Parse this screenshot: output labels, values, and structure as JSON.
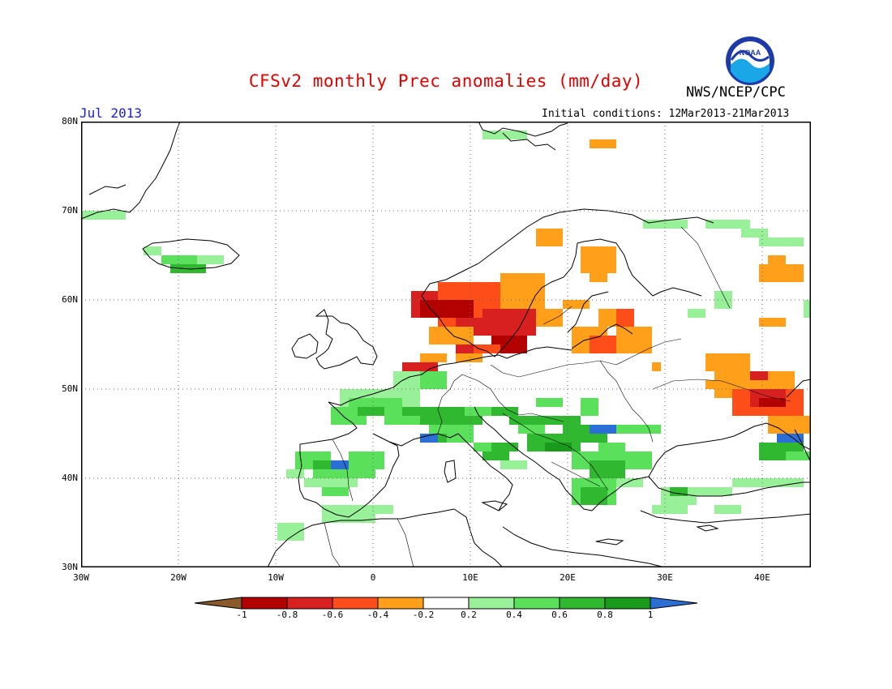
{
  "header": {
    "title": "CFSv2 monthly Prec anomalies (mm/day)",
    "agency": "NWS/NCEP/CPC",
    "logo_text": "NOAA",
    "month": "Jul 2013",
    "initial_conditions": "Initial conditions: 12Mar2013-21Mar2013"
  },
  "map": {
    "lat_labels": [
      "80N",
      "70N",
      "60N",
      "50N",
      "40N",
      "30N"
    ],
    "lon_labels": [
      "30W",
      "20W",
      "10W",
      "0",
      "10E",
      "20E",
      "30E",
      "40E"
    ],
    "grid_lines": "dotted",
    "extent": {
      "lon": [
        -30,
        45
      ],
      "lat": [
        30,
        80
      ]
    }
  },
  "colorbar": {
    "labels": [
      "-1",
      "-0.8",
      "-0.6",
      "-0.4",
      "-0.2",
      "0.2",
      "0.4",
      "0.6",
      "0.8",
      "1"
    ],
    "colors": [
      "#8B5A2B",
      "#b30000",
      "#d92020",
      "#ff4d1a",
      "#ff9f1a",
      "#ffffff",
      "#98f098",
      "#5ae05a",
      "#30b830",
      "#1a9a1a",
      "#2b6fd6"
    ]
  }
}
